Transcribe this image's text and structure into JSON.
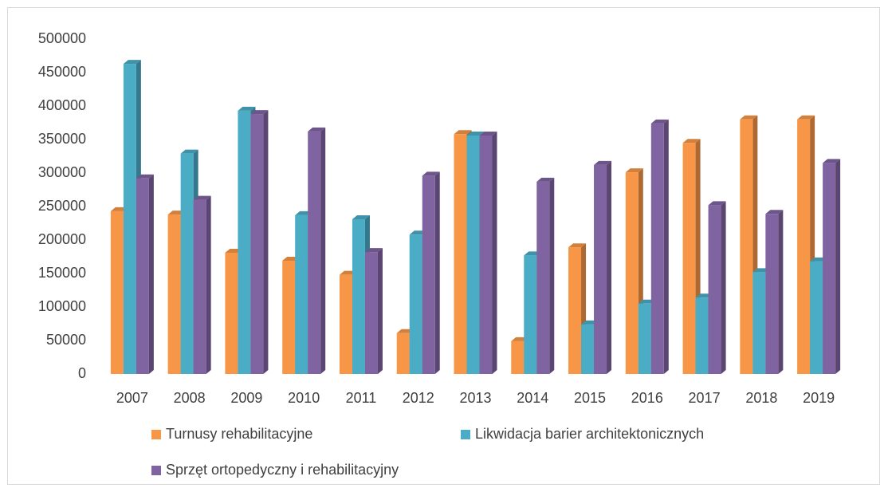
{
  "chart_data": {
    "type": "bar3d",
    "categories": [
      "2007",
      "2008",
      "2009",
      "2010",
      "2011",
      "2012",
      "2013",
      "2014",
      "2015",
      "2016",
      "2017",
      "2018",
      "2019"
    ],
    "series": [
      {
        "name": "Turnusy rehabilitacyjne",
        "color": "#f79646",
        "values": [
          243000,
          238000,
          181000,
          169000,
          148000,
          61000,
          358000,
          49000,
          189000,
          301000,
          345000,
          380000,
          380000
        ]
      },
      {
        "name": "Likwidacja barier architektonicznych",
        "color": "#4bacc6",
        "values": [
          463000,
          329000,
          393000,
          237000,
          231000,
          208000,
          356000,
          177000,
          74000,
          105000,
          114000,
          152000,
          168000
        ]
      },
      {
        "name": "Sprzęt ortopedyczny i rehabilitacyjny",
        "color": "#8064a2",
        "values": [
          292000,
          260000,
          388000,
          362000,
          182000,
          296000,
          356000,
          287000,
          312000,
          374000,
          252000,
          239000,
          315000
        ]
      }
    ],
    "ylim": [
      0,
      500000
    ],
    "yticks": [
      0,
      50000,
      100000,
      150000,
      200000,
      250000,
      300000,
      350000,
      400000,
      450000,
      500000
    ],
    "legend": "bottom"
  }
}
